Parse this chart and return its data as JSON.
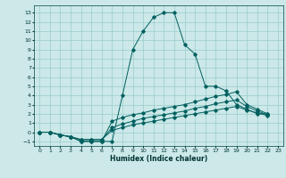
{
  "xlabel": "Humidex (Indice chaleur)",
  "xlim": [
    -0.5,
    23.5
  ],
  "ylim": [
    -1.5,
    13.8
  ],
  "yticks": [
    -1,
    0,
    1,
    2,
    3,
    4,
    5,
    6,
    7,
    8,
    9,
    10,
    11,
    12,
    13
  ],
  "xticks": [
    0,
    1,
    2,
    3,
    4,
    5,
    6,
    7,
    8,
    9,
    10,
    11,
    12,
    13,
    14,
    15,
    16,
    17,
    18,
    19,
    20,
    21,
    22,
    23
  ],
  "bg_color": "#cce8e8",
  "line_color": "#005f5f",
  "grid_color": "#99cccc",
  "series": [
    [
      0,
      0,
      -0.3,
      -0.5,
      -1,
      -1,
      -1,
      -1,
      4,
      9,
      11,
      12.5,
      13,
      13,
      9.5,
      8.5,
      5,
      5,
      4.5,
      3,
      2.5,
      2,
      2
    ],
    [
      0,
      0,
      -0.3,
      -0.5,
      -1,
      -1,
      -1,
      1.2,
      1.6,
      1.9,
      2.1,
      2.4,
      2.6,
      2.8,
      3.0,
      3.3,
      3.6,
      3.9,
      4.1,
      4.4,
      3.0,
      2.5,
      2.0
    ],
    [
      0,
      0,
      -0.3,
      -0.5,
      -0.8,
      -0.8,
      -0.8,
      0.5,
      0.9,
      1.2,
      1.5,
      1.7,
      1.9,
      2.1,
      2.3,
      2.6,
      2.8,
      3.1,
      3.3,
      3.5,
      2.8,
      2.3,
      1.9
    ],
    [
      0,
      0,
      -0.3,
      -0.5,
      -0.8,
      -0.8,
      -0.8,
      0.2,
      0.5,
      0.8,
      1.0,
      1.2,
      1.4,
      1.6,
      1.8,
      2.0,
      2.2,
      2.4,
      2.6,
      2.8,
      2.4,
      2.1,
      1.8
    ]
  ]
}
